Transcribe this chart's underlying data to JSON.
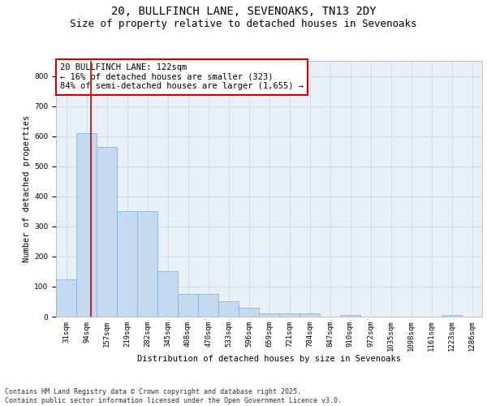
{
  "title_line1": "20, BULLFINCH LANE, SEVENOAKS, TN13 2DY",
  "title_line2": "Size of property relative to detached houses in Sevenoaks",
  "xlabel": "Distribution of detached houses by size in Sevenoaks",
  "ylabel": "Number of detached properties",
  "bar_color": "#c5d9f0",
  "bar_edge_color": "#7aaed6",
  "categories": [
    "31sqm",
    "94sqm",
    "157sqm",
    "219sqm",
    "282sqm",
    "345sqm",
    "408sqm",
    "470sqm",
    "533sqm",
    "596sqm",
    "659sqm",
    "721sqm",
    "784sqm",
    "847sqm",
    "910sqm",
    "972sqm",
    "1035sqm",
    "1098sqm",
    "1161sqm",
    "1223sqm",
    "1286sqm"
  ],
  "values": [
    125,
    610,
    565,
    350,
    350,
    150,
    75,
    75,
    50,
    30,
    12,
    10,
    10,
    0,
    5,
    0,
    0,
    0,
    0,
    5,
    0
  ],
  "ylim": [
    0,
    850
  ],
  "yticks": [
    0,
    100,
    200,
    300,
    400,
    500,
    600,
    700,
    800
  ],
  "annotation_text": "20 BULLFINCH LANE: 122sqm\n← 16% of detached houses are smaller (323)\n84% of semi-detached houses are larger (1,655) →",
  "annotation_box_color": "#ffffff",
  "annotation_border_color": "#cc0000",
  "vline_color": "#cc0000",
  "vline_x": 1.2,
  "footer_line1": "Contains HM Land Registry data © Crown copyright and database right 2025.",
  "footer_line2": "Contains public sector information licensed under the Open Government Licence v3.0.",
  "background_color": "#eaf0f8",
  "grid_color": "#d0d8e8",
  "title_fontsize": 10,
  "subtitle_fontsize": 9,
  "axis_label_fontsize": 7.5,
  "tick_fontsize": 6.5,
  "annotation_fontsize": 7.5,
  "footer_fontsize": 6
}
